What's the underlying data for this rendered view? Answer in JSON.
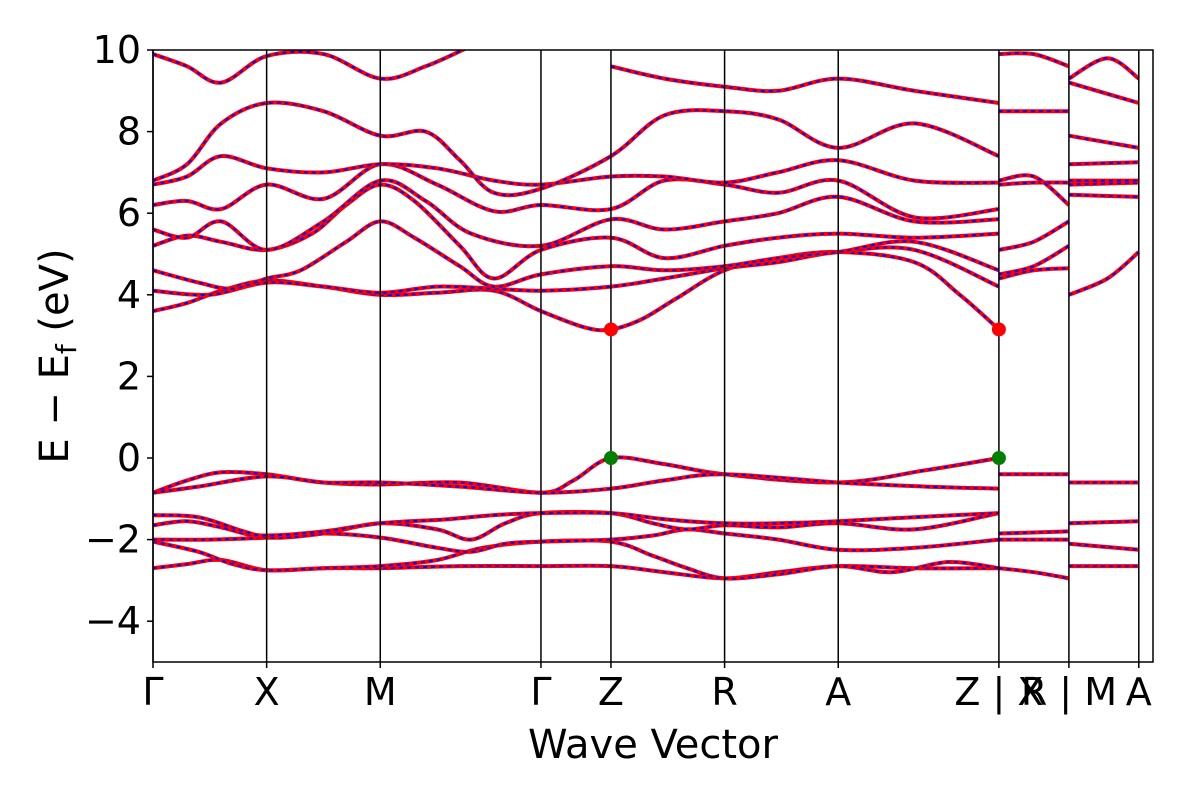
{
  "chart_data": {
    "type": "line",
    "xlabel": "Wave Vector",
    "ylabel_parts": {
      "main": "E − E",
      "sub": "f",
      "unit": " (eV)"
    },
    "ylim": [
      -5,
      10
    ],
    "yticks": [
      -4,
      -2,
      0,
      2,
      4,
      6,
      8,
      10
    ],
    "ytick_labels": [
      "−4",
      "−2",
      "0",
      "2",
      "4",
      "6",
      "8",
      "10"
    ],
    "xlim": [
      0,
      8.8
    ],
    "kpoints": [
      {
        "x": 0,
        "label": "Γ"
      },
      {
        "x": 1.0,
        "label": "X"
      },
      {
        "x": 2.0,
        "label": "M"
      },
      {
        "x": 3.414,
        "label": "Γ"
      },
      {
        "x": 4.03,
        "label": "Z"
      },
      {
        "x": 5.03,
        "label": "R"
      },
      {
        "x": 6.03,
        "label": "A"
      },
      {
        "x": 7.444,
        "label": "Z | X"
      },
      {
        "x": 8.06,
        "label": "R | M"
      },
      {
        "x": 8.675,
        "label": "A"
      }
    ],
    "band_colors": {
      "primary": "#ff0000",
      "overlay": "#0000ff"
    },
    "extrema": {
      "cbm": {
        "color": "#ff0000",
        "points": [
          {
            "x": 4.03,
            "y": 3.15
          },
          {
            "x": 7.444,
            "y": 3.15
          }
        ]
      },
      "vbm": {
        "color": "#008000",
        "points": [
          {
            "x": 4.03,
            "y": 0.0
          },
          {
            "x": 7.444,
            "y": 0.0
          }
        ]
      }
    },
    "bands": [
      [
        [
          0,
          -2.7
        ],
        [
          0.3,
          -2.6
        ],
        [
          0.6,
          -2.5
        ],
        [
          1.0,
          -2.75
        ],
        [
          1.5,
          -2.7
        ],
        [
          2.0,
          -2.7
        ],
        [
          2.7,
          -2.65
        ],
        [
          3.414,
          -2.65
        ],
        [
          4.03,
          -2.65
        ],
        [
          4.5,
          -2.8
        ],
        [
          5.03,
          -2.95
        ],
        [
          5.5,
          -2.8
        ],
        [
          6.03,
          -2.65
        ],
        [
          6.7,
          -2.7
        ],
        [
          7.444,
          -2.7
        ]
      ],
      [
        [
          0,
          -2.05
        ],
        [
          0.4,
          -2.3
        ],
        [
          0.7,
          -2.6
        ],
        [
          1.0,
          -2.75
        ],
        [
          1.5,
          -2.7
        ],
        [
          2.0,
          -2.65
        ],
        [
          2.5,
          -2.5
        ],
        [
          2.9,
          -2.2
        ],
        [
          3.414,
          -2.05
        ],
        [
          4.03,
          -2.05
        ],
        [
          4.4,
          -2.4
        ],
        [
          4.7,
          -2.7
        ],
        [
          5.03,
          -2.95
        ],
        [
          5.5,
          -2.85
        ],
        [
          6.03,
          -2.65
        ],
        [
          6.5,
          -2.8
        ],
        [
          7.0,
          -2.55
        ],
        [
          7.444,
          -2.7
        ]
      ],
      [
        [
          0,
          -2.0
        ],
        [
          0.5,
          -2.0
        ],
        [
          1.0,
          -1.95
        ],
        [
          1.5,
          -1.85
        ],
        [
          2.0,
          -1.95
        ],
        [
          2.5,
          -2.2
        ],
        [
          2.8,
          -2.3
        ],
        [
          3.1,
          -2.1
        ],
        [
          3.414,
          -2.05
        ],
        [
          4.03,
          -2.0
        ],
        [
          4.4,
          -1.9
        ],
        [
          4.7,
          -1.75
        ],
        [
          5.03,
          -1.85
        ],
        [
          5.5,
          -2.0
        ],
        [
          6.03,
          -2.25
        ],
        [
          6.7,
          -2.2
        ],
        [
          7.444,
          -2.0
        ]
      ],
      [
        [
          0,
          -1.65
        ],
        [
          0.3,
          -1.55
        ],
        [
          0.6,
          -1.7
        ],
        [
          1.0,
          -1.95
        ],
        [
          1.5,
          -1.85
        ],
        [
          2.0,
          -1.6
        ],
        [
          2.5,
          -1.75
        ],
        [
          2.8,
          -2.0
        ],
        [
          3.1,
          -1.6
        ],
        [
          3.414,
          -1.35
        ],
        [
          4.03,
          -1.35
        ],
        [
          4.4,
          -1.6
        ],
        [
          4.7,
          -1.75
        ],
        [
          5.03,
          -1.65
        ],
        [
          5.5,
          -1.7
        ],
        [
          6.03,
          -1.6
        ],
        [
          6.7,
          -1.75
        ],
        [
          7.444,
          -1.35
        ]
      ],
      [
        [
          0,
          -1.4
        ],
        [
          0.4,
          -1.45
        ],
        [
          0.8,
          -1.8
        ],
        [
          1.0,
          -1.9
        ],
        [
          1.5,
          -1.8
        ],
        [
          2.0,
          -1.6
        ],
        [
          2.6,
          -1.5
        ],
        [
          3.0,
          -1.4
        ],
        [
          3.414,
          -1.35
        ],
        [
          4.03,
          -1.35
        ],
        [
          4.5,
          -1.5
        ],
        [
          5.03,
          -1.6
        ],
        [
          5.5,
          -1.6
        ],
        [
          6.03,
          -1.55
        ],
        [
          6.7,
          -1.45
        ],
        [
          7.444,
          -1.35
        ]
      ],
      [
        [
          0,
          -0.85
        ],
        [
          0.3,
          -0.55
        ],
        [
          0.6,
          -0.35
        ],
        [
          1.0,
          -0.4
        ],
        [
          1.5,
          -0.6
        ],
        [
          2.0,
          -0.65
        ],
        [
          2.7,
          -0.6
        ],
        [
          3.414,
          -0.85
        ],
        [
          3.7,
          -0.55
        ],
        [
          4.03,
          0.0
        ],
        [
          4.5,
          -0.15
        ],
        [
          5.03,
          -0.4
        ],
        [
          6.03,
          -0.6
        ],
        [
          6.8,
          -0.3
        ],
        [
          7.444,
          0.0
        ]
      ],
      [
        [
          0,
          -0.85
        ],
        [
          0.4,
          -0.7
        ],
        [
          1.0,
          -0.45
        ],
        [
          1.5,
          -0.6
        ],
        [
          2.0,
          -0.6
        ],
        [
          2.7,
          -0.7
        ],
        [
          3.414,
          -0.85
        ],
        [
          4.03,
          -0.75
        ],
        [
          4.5,
          -0.55
        ],
        [
          5.03,
          -0.4
        ],
        [
          6.03,
          -0.6
        ],
        [
          6.8,
          -0.7
        ],
        [
          7.444,
          -0.75
        ]
      ],
      [
        [
          0,
          3.6
        ],
        [
          0.3,
          3.8
        ],
        [
          0.6,
          4.1
        ],
        [
          1.0,
          4.35
        ],
        [
          1.5,
          4.2
        ],
        [
          2.0,
          4.0
        ],
        [
          2.5,
          4.05
        ],
        [
          3.0,
          4.1
        ],
        [
          3.414,
          3.6
        ],
        [
          3.8,
          3.2
        ],
        [
          4.03,
          3.15
        ],
        [
          4.3,
          3.4
        ],
        [
          4.6,
          3.9
        ],
        [
          5.03,
          4.6
        ],
        [
          5.5,
          4.9
        ],
        [
          6.03,
          5.05
        ],
        [
          6.7,
          4.8
        ],
        [
          7.1,
          4.0
        ],
        [
          7.444,
          3.15
        ]
      ],
      [
        [
          0,
          4.1
        ],
        [
          0.5,
          4.0
        ],
        [
          1.0,
          4.3
        ],
        [
          1.5,
          4.2
        ],
        [
          2.0,
          4.05
        ],
        [
          2.5,
          4.2
        ],
        [
          3.0,
          4.15
        ],
        [
          3.414,
          4.1
        ],
        [
          4.03,
          4.2
        ],
        [
          4.5,
          4.4
        ],
        [
          5.03,
          4.65
        ],
        [
          5.5,
          4.8
        ],
        [
          6.03,
          5.05
        ],
        [
          6.7,
          5.1
        ],
        [
          7.444,
          4.2
        ]
      ],
      [
        [
          0,
          4.6
        ],
        [
          0.4,
          4.3
        ],
        [
          0.7,
          4.15
        ],
        [
          1.0,
          4.4
        ],
        [
          1.3,
          4.6
        ],
        [
          1.7,
          5.3
        ],
        [
          2.0,
          5.8
        ],
        [
          2.3,
          5.4
        ],
        [
          2.7,
          4.7
        ],
        [
          3.0,
          4.2
        ],
        [
          3.414,
          4.5
        ],
        [
          4.03,
          4.7
        ],
        [
          4.5,
          4.6
        ],
        [
          5.03,
          4.7
        ],
        [
          5.5,
          4.9
        ],
        [
          6.03,
          5.05
        ],
        [
          6.7,
          5.3
        ],
        [
          7.444,
          4.6
        ]
      ],
      [
        [
          0,
          5.2
        ],
        [
          0.3,
          5.45
        ],
        [
          0.6,
          5.3
        ],
        [
          1.0,
          5.1
        ],
        [
          1.4,
          5.5
        ],
        [
          1.7,
          6.2
        ],
        [
          2.0,
          6.7
        ],
        [
          2.3,
          6.3
        ],
        [
          2.7,
          5.2
        ],
        [
          3.0,
          4.4
        ],
        [
          3.414,
          5.1
        ],
        [
          4.03,
          5.4
        ],
        [
          4.5,
          4.9
        ],
        [
          5.03,
          5.2
        ],
        [
          5.5,
          5.4
        ],
        [
          6.03,
          5.5
        ],
        [
          6.7,
          5.4
        ],
        [
          7.444,
          5.5
        ]
      ],
      [
        [
          0,
          5.6
        ],
        [
          0.3,
          5.4
        ],
        [
          0.6,
          5.8
        ],
        [
          1.0,
          5.1
        ],
        [
          1.5,
          5.8
        ],
        [
          2.0,
          6.8
        ],
        [
          2.4,
          6.3
        ],
        [
          2.8,
          5.5
        ],
        [
          3.414,
          5.2
        ],
        [
          4.03,
          5.85
        ],
        [
          4.5,
          5.6
        ],
        [
          5.03,
          5.8
        ],
        [
          5.5,
          6.0
        ],
        [
          6.03,
          6.4
        ],
        [
          6.7,
          5.8
        ],
        [
          7.444,
          5.85
        ]
      ],
      [
        [
          0,
          6.2
        ],
        [
          0.3,
          6.3
        ],
        [
          0.6,
          6.1
        ],
        [
          1.0,
          6.7
        ],
        [
          1.5,
          6.35
        ],
        [
          2.0,
          7.2
        ],
        [
          2.5,
          6.7
        ],
        [
          3.0,
          6.05
        ],
        [
          3.414,
          6.2
        ],
        [
          4.03,
          6.1
        ],
        [
          4.5,
          6.8
        ],
        [
          5.03,
          6.7
        ],
        [
          5.5,
          6.5
        ],
        [
          6.03,
          6.8
        ],
        [
          6.7,
          5.9
        ],
        [
          7.444,
          6.1
        ]
      ],
      [
        [
          0,
          6.7
        ],
        [
          0.3,
          6.9
        ],
        [
          0.6,
          7.4
        ],
        [
          1.0,
          7.1
        ],
        [
          1.5,
          7.0
        ],
        [
          2.0,
          7.2
        ],
        [
          2.5,
          7.1
        ],
        [
          3.0,
          6.8
        ],
        [
          3.414,
          6.7
        ],
        [
          4.03,
          6.9
        ],
        [
          4.5,
          6.9
        ],
        [
          5.03,
          6.75
        ],
        [
          5.5,
          7.0
        ],
        [
          6.03,
          7.3
        ],
        [
          6.7,
          6.8
        ],
        [
          7.444,
          6.75
        ]
      ],
      [
        [
          0,
          6.8
        ],
        [
          0.3,
          7.2
        ],
        [
          0.6,
          8.2
        ],
        [
          1.0,
          8.7
        ],
        [
          1.5,
          8.5
        ],
        [
          2.0,
          7.9
        ],
        [
          2.4,
          8.0
        ],
        [
          2.7,
          7.3
        ],
        [
          3.0,
          6.5
        ],
        [
          3.414,
          6.6
        ],
        [
          4.03,
          7.4
        ],
        [
          4.5,
          8.4
        ],
        [
          5.03,
          8.5
        ],
        [
          5.5,
          8.3
        ],
        [
          6.03,
          7.6
        ],
        [
          6.7,
          8.2
        ],
        [
          7.444,
          7.4
        ]
      ],
      [
        [
          0,
          9.9
        ],
        [
          0.3,
          9.6
        ],
        [
          0.6,
          9.2
        ],
        [
          1.0,
          9.85
        ],
        [
          1.5,
          9.9
        ],
        [
          2.0,
          9.3
        ],
        [
          2.4,
          9.6
        ],
        [
          2.8,
          10.1
        ]
      ],
      [
        [
          4.03,
          9.6
        ],
        [
          4.5,
          9.3
        ],
        [
          5.03,
          9.1
        ],
        [
          5.5,
          9.0
        ],
        [
          6.03,
          9.3
        ],
        [
          6.7,
          9.0
        ],
        [
          7.444,
          8.7
        ]
      ],
      [
        [
          7.444,
          -0.4
        ],
        [
          8.06,
          -0.4
        ]
      ],
      [
        [
          7.444,
          -1.85
        ],
        [
          8.06,
          -1.8
        ]
      ],
      [
        [
          7.444,
          -2.0
        ],
        [
          8.06,
          -2.0
        ]
      ],
      [
        [
          7.444,
          -2.7
        ],
        [
          7.75,
          -2.8
        ],
        [
          8.06,
          -2.95
        ]
      ],
      [
        [
          7.444,
          4.4
        ],
        [
          7.75,
          4.6
        ],
        [
          8.06,
          4.65
        ]
      ],
      [
        [
          7.444,
          4.5
        ],
        [
          7.75,
          4.7
        ],
        [
          8.06,
          5.2
        ]
      ],
      [
        [
          7.444,
          5.1
        ],
        [
          7.75,
          5.3
        ],
        [
          8.06,
          5.8
        ]
      ],
      [
        [
          7.444,
          6.7
        ],
        [
          7.75,
          6.75
        ],
        [
          8.06,
          6.75
        ]
      ],
      [
        [
          7.444,
          6.8
        ],
        [
          7.75,
          6.9
        ],
        [
          8.06,
          6.2
        ]
      ],
      [
        [
          7.444,
          8.5
        ],
        [
          7.75,
          8.5
        ],
        [
          8.06,
          8.5
        ]
      ],
      [
        [
          7.444,
          9.9
        ],
        [
          7.75,
          9.9
        ],
        [
          8.06,
          9.6
        ]
      ],
      [
        [
          8.06,
          -0.6
        ],
        [
          8.675,
          -0.6
        ]
      ],
      [
        [
          8.06,
          -1.6
        ],
        [
          8.675,
          -1.55
        ]
      ],
      [
        [
          8.06,
          -2.1
        ],
        [
          8.675,
          -2.25
        ]
      ],
      [
        [
          8.06,
          -2.65
        ],
        [
          8.675,
          -2.65
        ]
      ],
      [
        [
          8.06,
          4.0
        ],
        [
          8.4,
          4.4
        ],
        [
          8.675,
          5.05
        ]
      ],
      [
        [
          8.06,
          6.45
        ],
        [
          8.675,
          6.4
        ]
      ],
      [
        [
          8.06,
          6.7
        ],
        [
          8.675,
          6.75
        ]
      ],
      [
        [
          8.06,
          6.8
        ],
        [
          8.675,
          6.8
        ]
      ],
      [
        [
          8.06,
          7.2
        ],
        [
          8.675,
          7.25
        ]
      ],
      [
        [
          8.06,
          7.9
        ],
        [
          8.675,
          7.6
        ]
      ],
      [
        [
          8.06,
          9.2
        ],
        [
          8.675,
          8.7
        ]
      ],
      [
        [
          8.06,
          9.3
        ],
        [
          8.4,
          9.8
        ],
        [
          8.675,
          9.3
        ]
      ]
    ]
  }
}
